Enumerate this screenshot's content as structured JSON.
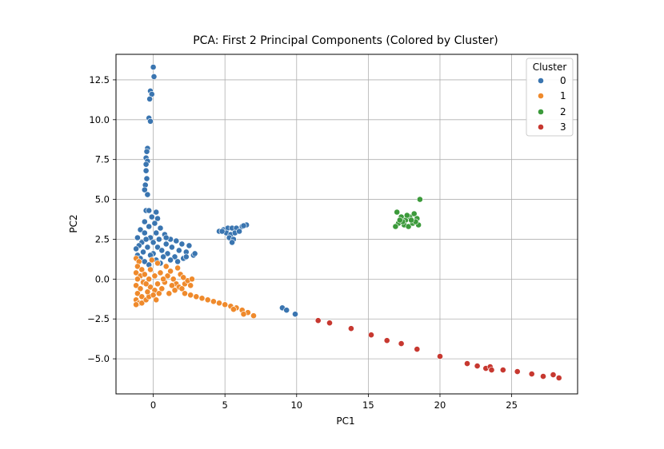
{
  "chart_data": {
    "type": "scatter",
    "title": "PCA: First 2 Principal Components (Colored by Cluster)",
    "xlabel": "PC1",
    "ylabel": "PC2",
    "xlim": [
      -2.6,
      29.6
    ],
    "ylim": [
      -7.2,
      14.1
    ],
    "xticks": [
      0,
      5,
      10,
      15,
      20,
      25
    ],
    "xtick_labels": [
      "0",
      "5",
      "10",
      "15",
      "20",
      "25"
    ],
    "yticks": [
      -5.0,
      -2.5,
      0.0,
      2.5,
      5.0,
      7.5,
      10.0,
      12.5
    ],
    "ytick_labels": [
      "−5.0",
      "−2.5",
      "0.0",
      "2.5",
      "5.0",
      "7.5",
      "10.0",
      "12.5"
    ],
    "grid": true,
    "legend": {
      "title": "Cluster",
      "placement": "top-right"
    },
    "series": [
      {
        "name": "0",
        "color": "#3a75b0",
        "points": [
          [
            0.0,
            13.3
          ],
          [
            0.05,
            12.7
          ],
          [
            -0.2,
            11.8
          ],
          [
            -0.1,
            11.6
          ],
          [
            -0.25,
            11.3
          ],
          [
            -0.3,
            10.1
          ],
          [
            -0.2,
            9.9
          ],
          [
            -0.4,
            8.2
          ],
          [
            -0.45,
            8.0
          ],
          [
            -0.5,
            7.6
          ],
          [
            -0.4,
            7.4
          ],
          [
            -0.5,
            7.2
          ],
          [
            -0.5,
            6.8
          ],
          [
            -0.45,
            6.3
          ],
          [
            -0.55,
            5.9
          ],
          [
            -0.6,
            5.6
          ],
          [
            -0.4,
            5.3
          ],
          [
            -0.5,
            4.3
          ],
          [
            -0.3,
            4.3
          ],
          [
            0.2,
            4.2
          ],
          [
            -0.1,
            3.9
          ],
          [
            0.3,
            3.8
          ],
          [
            -0.6,
            3.6
          ],
          [
            0.1,
            3.5
          ],
          [
            -0.3,
            3.3
          ],
          [
            0.5,
            3.2
          ],
          [
            -0.9,
            3.1
          ],
          [
            -0.6,
            2.9
          ],
          [
            0.2,
            2.9
          ],
          [
            0.8,
            2.8
          ],
          [
            -1.1,
            2.6
          ],
          [
            -0.2,
            2.6
          ],
          [
            0.4,
            2.5
          ],
          [
            1.2,
            2.5
          ],
          [
            1.6,
            2.4
          ],
          [
            -0.8,
            2.3
          ],
          [
            0.0,
            2.3
          ],
          [
            0.9,
            2.2
          ],
          [
            2.0,
            2.2
          ],
          [
            2.5,
            2.1
          ],
          [
            -1.0,
            2.1
          ],
          [
            -0.4,
            2.0
          ],
          [
            0.3,
            2.0
          ],
          [
            1.3,
            2.0
          ],
          [
            -1.2,
            1.9
          ],
          [
            0.6,
            1.8
          ],
          [
            1.8,
            1.8
          ],
          [
            2.3,
            1.7
          ],
          [
            -0.7,
            1.7
          ],
          [
            0.0,
            1.6
          ],
          [
            1.0,
            1.6
          ],
          [
            -1.1,
            1.5
          ],
          [
            -0.2,
            1.5
          ],
          [
            0.7,
            1.4
          ],
          [
            1.5,
            1.4
          ],
          [
            2.8,
            1.5
          ],
          [
            -0.9,
            1.3
          ],
          [
            0.2,
            1.2
          ],
          [
            1.2,
            1.2
          ],
          [
            -0.6,
            1.1
          ],
          [
            0.5,
            1.0
          ],
          [
            1.7,
            1.1
          ],
          [
            -0.3,
            0.9
          ],
          [
            2.1,
            1.3
          ],
          [
            2.9,
            1.6
          ],
          [
            2.3,
            1.4
          ],
          [
            0.9,
            2.6
          ],
          [
            -0.5,
            2.5
          ],
          [
            4.6,
            3.0
          ],
          [
            4.9,
            3.1
          ],
          [
            5.2,
            3.2
          ],
          [
            5.5,
            3.2
          ],
          [
            5.8,
            3.2
          ],
          [
            6.2,
            3.3
          ],
          [
            6.5,
            3.4
          ],
          [
            5.1,
            2.9
          ],
          [
            5.4,
            2.8
          ],
          [
            5.7,
            2.9
          ],
          [
            6.0,
            3.0
          ],
          [
            5.3,
            2.6
          ],
          [
            5.6,
            2.5
          ],
          [
            5.5,
            2.3
          ],
          [
            4.8,
            3.0
          ],
          [
            6.3,
            3.35
          ],
          [
            9.0,
            -1.8
          ],
          [
            9.3,
            -1.95
          ],
          [
            9.9,
            -2.2
          ]
        ]
      },
      {
        "name": "1",
        "color": "#ef8a2c",
        "points": [
          [
            -1.2,
            1.3
          ],
          [
            -1.0,
            1.1
          ],
          [
            -1.1,
            0.8
          ],
          [
            -0.8,
            0.6
          ],
          [
            -1.2,
            0.4
          ],
          [
            -0.9,
            0.2
          ],
          [
            -1.1,
            0.0
          ],
          [
            -0.7,
            -0.2
          ],
          [
            -1.2,
            -0.4
          ],
          [
            -0.9,
            -0.6
          ],
          [
            -1.1,
            -0.9
          ],
          [
            -0.8,
            -1.1
          ],
          [
            -1.2,
            -1.3
          ],
          [
            -1.0,
            -1.5
          ],
          [
            -1.2,
            -1.6
          ],
          [
            -0.8,
            -1.5
          ],
          [
            -0.5,
            -1.3
          ],
          [
            -0.3,
            -1.1
          ],
          [
            -0.4,
            -0.8
          ],
          [
            -0.2,
            -0.5
          ],
          [
            -0.5,
            -0.3
          ],
          [
            -0.3,
            0.0
          ],
          [
            -0.6,
            0.3
          ],
          [
            -0.2,
            0.6
          ],
          [
            0.1,
            0.2
          ],
          [
            0.3,
            -0.3
          ],
          [
            0.1,
            -0.7
          ],
          [
            0.4,
            -0.9
          ],
          [
            0.0,
            -1.0
          ],
          [
            0.6,
            -0.6
          ],
          [
            0.8,
            -0.2
          ],
          [
            1.0,
            0.2
          ],
          [
            1.2,
            0.5
          ],
          [
            0.9,
            0.8
          ],
          [
            0.5,
            0.4
          ],
          [
            0.7,
            0.0
          ],
          [
            1.4,
            0.0
          ],
          [
            1.6,
            -0.3
          ],
          [
            1.8,
            -0.5
          ],
          [
            2.0,
            -0.6
          ],
          [
            1.5,
            -0.7
          ],
          [
            1.1,
            -0.9
          ],
          [
            1.9,
            0.3
          ],
          [
            1.7,
            0.7
          ],
          [
            2.2,
            -0.3
          ],
          [
            2.4,
            -0.1
          ],
          [
            2.6,
            -0.4
          ],
          [
            2.1,
            0.1
          ],
          [
            2.7,
            0.0
          ],
          [
            0.3,
            1.0
          ],
          [
            -0.1,
            1.2
          ],
          [
            1.3,
            -0.4
          ],
          [
            0.2,
            -1.3
          ],
          [
            2.2,
            -0.9
          ],
          [
            2.6,
            -1.0
          ],
          [
            3.0,
            -1.1
          ],
          [
            3.4,
            -1.2
          ],
          [
            3.8,
            -1.3
          ],
          [
            4.2,
            -1.4
          ],
          [
            4.6,
            -1.5
          ],
          [
            5.0,
            -1.6
          ],
          [
            5.4,
            -1.7
          ],
          [
            5.8,
            -1.8
          ],
          [
            6.2,
            -1.95
          ],
          [
            6.6,
            -2.1
          ],
          [
            7.0,
            -2.3
          ],
          [
            6.3,
            -2.2
          ],
          [
            5.6,
            -1.9
          ]
        ]
      },
      {
        "name": "2",
        "color": "#3c9a3b",
        "points": [
          [
            18.6,
            5.0
          ],
          [
            17.0,
            4.2
          ],
          [
            17.3,
            3.9
          ],
          [
            17.6,
            3.7
          ],
          [
            17.9,
            3.9
          ],
          [
            18.2,
            4.1
          ],
          [
            18.4,
            3.8
          ],
          [
            17.1,
            3.5
          ],
          [
            17.5,
            3.4
          ],
          [
            17.8,
            3.3
          ],
          [
            18.1,
            3.5
          ],
          [
            18.5,
            3.4
          ],
          [
            16.9,
            3.3
          ],
          [
            17.7,
            4.0
          ],
          [
            18.3,
            3.6
          ],
          [
            17.4,
            3.6
          ],
          [
            18.0,
            3.7
          ],
          [
            17.2,
            3.7
          ]
        ]
      },
      {
        "name": "3",
        "color": "#c73830",
        "points": [
          [
            11.5,
            -2.6
          ],
          [
            12.3,
            -2.75
          ],
          [
            13.8,
            -3.1
          ],
          [
            15.2,
            -3.5
          ],
          [
            16.3,
            -3.85
          ],
          [
            17.3,
            -4.05
          ],
          [
            18.4,
            -4.4
          ],
          [
            20.0,
            -4.85
          ],
          [
            21.9,
            -5.3
          ],
          [
            22.6,
            -5.45
          ],
          [
            23.2,
            -5.6
          ],
          [
            23.5,
            -5.5
          ],
          [
            23.6,
            -5.7
          ],
          [
            24.4,
            -5.7
          ],
          [
            25.4,
            -5.8
          ],
          [
            26.4,
            -5.95
          ],
          [
            27.2,
            -6.1
          ],
          [
            27.9,
            -6.0
          ],
          [
            28.3,
            -6.2
          ]
        ]
      }
    ]
  }
}
